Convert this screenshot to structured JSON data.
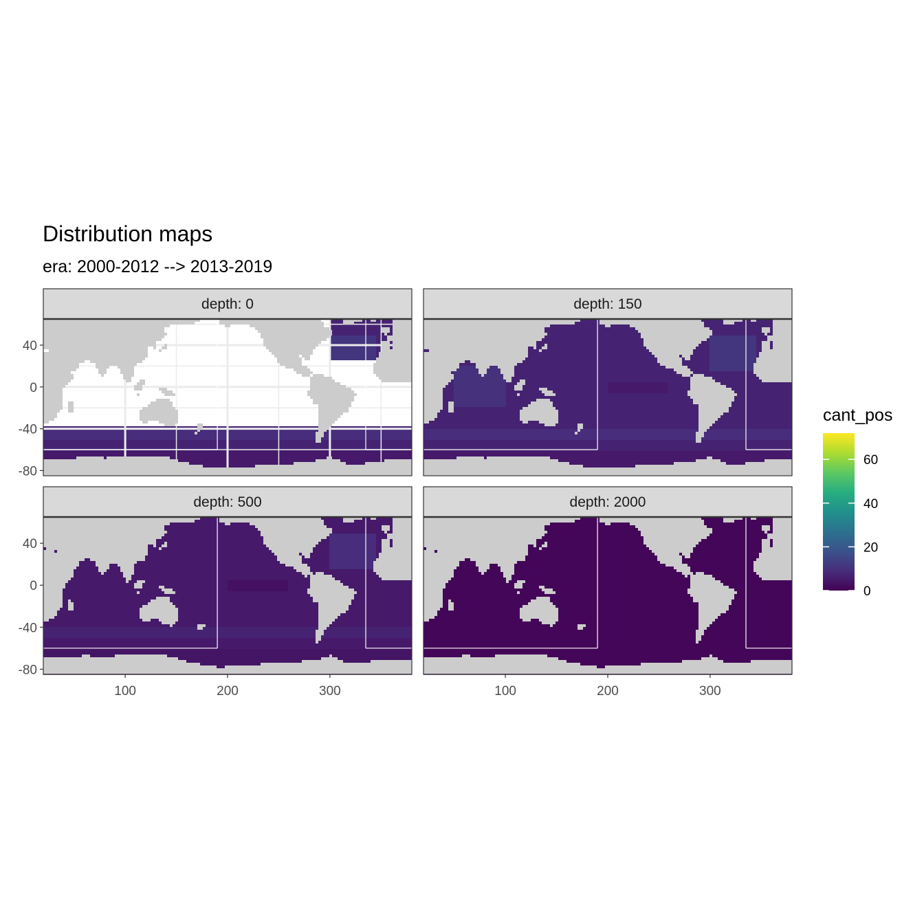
{
  "title": "Distribution maps",
  "subtitle": "era: 2000-2012 --> 2013-2019",
  "colors": {
    "land": "#cccccc",
    "no_data": "#ffffff",
    "strip_fill": "#d9d9d9",
    "panel_border": "#333333",
    "viridis": [
      "#440154",
      "#472d7b",
      "#3b528b",
      "#2c728e",
      "#21918c",
      "#28ae80",
      "#5ec962",
      "#addc30",
      "#fde725"
    ]
  },
  "chart_data": {
    "type": "heatmap",
    "facet_variable": "depth",
    "panels": [
      {
        "label": "depth: 0",
        "depth": 0,
        "typical_value": 7,
        "polar_value": 5,
        "data_coverage": "southern ocean (lat < -38) and north atlantic / arctic only",
        "panel_grid_visible": true
      },
      {
        "label": "depth: 150",
        "depth": 150,
        "typical_value": 7,
        "polar_value": 5,
        "data_coverage": "global ocean",
        "panel_grid_visible": false
      },
      {
        "label": "depth: 500",
        "depth": 500,
        "typical_value": 5,
        "polar_value": 4,
        "data_coverage": "global ocean",
        "panel_grid_visible": false
      },
      {
        "label": "depth: 2000",
        "depth": 2000,
        "typical_value": 1,
        "polar_value": 1,
        "data_coverage": "global ocean",
        "panel_grid_visible": false
      }
    ],
    "x_axis": {
      "label": "",
      "range": [
        20,
        380
      ],
      "ticks": [
        100,
        200,
        300
      ],
      "tick_labels": [
        "100",
        "200",
        "300"
      ]
    },
    "y_axis": {
      "label": "",
      "range": [
        -85,
        65
      ],
      "ticks": [
        40,
        0,
        -40,
        -80
      ],
      "tick_labels": [
        "40",
        "0",
        "-40",
        "-80"
      ]
    },
    "region_boundaries": {
      "color": "#ffffff",
      "vertical_lines": [
        {
          "lon": 190,
          "lat_from": -60,
          "lat_to": 65
        },
        {
          "lon": 335,
          "lat_from": -60,
          "lat_to": 65
        }
      ],
      "horizontal_lines": [
        {
          "lat": -60,
          "lon_from": 20,
          "lon_to": 190
        },
        {
          "lat": -60,
          "lon_from": 335,
          "lon_to": 380
        }
      ]
    },
    "legend": {
      "title": "cant_pos",
      "range": [
        0,
        72
      ],
      "ticks": [
        0,
        20,
        40,
        60
      ],
      "tick_labels": [
        "0",
        "20",
        "40",
        "60"
      ],
      "position": "right"
    }
  }
}
